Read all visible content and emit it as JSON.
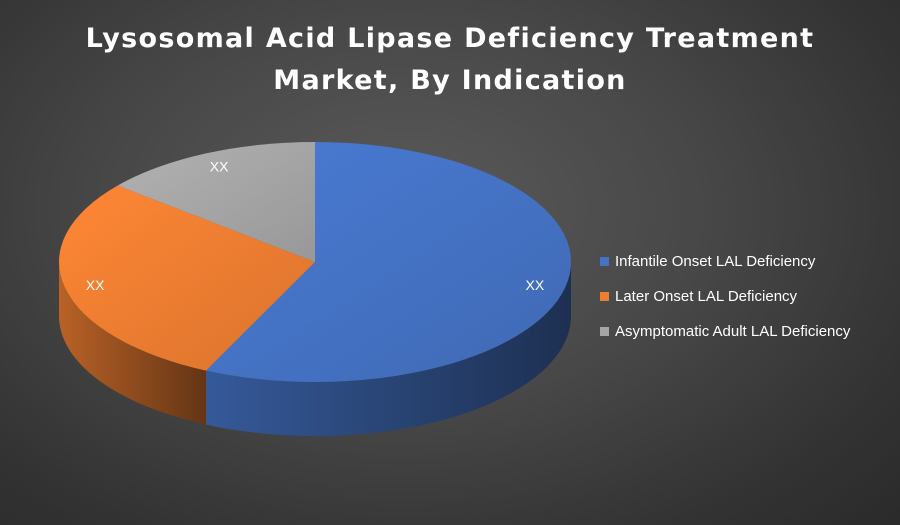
{
  "chart_data": {
    "type": "pie",
    "title_lines": [
      "Lysosomal Acid Lipase Deficiency Treatment",
      "Market, By Indication"
    ],
    "categories": [
      "Infantile Onset LAL Deficiency",
      "Later Onset LAL Deficiency",
      "Asymptomatic Adult LAL Deficiency"
    ],
    "values": [
      57,
      29,
      14
    ],
    "data_labels": [
      "XX",
      "XX",
      "XX"
    ],
    "colors": [
      "#4472c4",
      "#ed7d31",
      "#a5a5a5"
    ],
    "legend_position": "right",
    "style": "3d"
  }
}
